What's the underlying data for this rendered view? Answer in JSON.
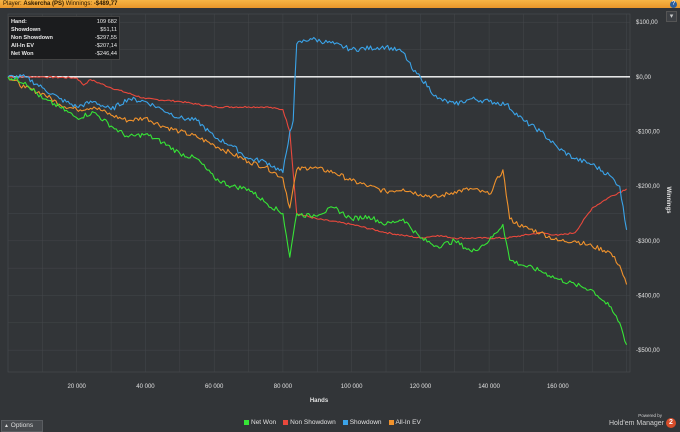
{
  "window": {
    "player_label": "Player:",
    "player_name": "Askercha (PS)",
    "winnings_label": "Winnings:",
    "winnings_value": "-$489,77",
    "help_icon": "?",
    "expand_icon": "▾"
  },
  "stats": [
    {
      "label": "Hand:",
      "value": "109 682"
    },
    {
      "label": "Showdown",
      "value": "$51,11"
    },
    {
      "label": "Non Showdown",
      "value": "-$297,55"
    },
    {
      "label": "All-In EV",
      "value": "-$207,14"
    },
    {
      "label": "Net Won",
      "value": "-$246,44"
    }
  ],
  "options_label": "Options",
  "options_icon": "▲",
  "branding": {
    "powered_by": "Powered by",
    "product": "Hold'em Manager",
    "version": "2"
  },
  "colors": {
    "net_won": "#36e436",
    "non_showdown": "#e8483c",
    "showdown": "#3aa3e8",
    "all_in_ev": "#f0922c",
    "zero_line": "#ffffff",
    "background": "#323538"
  },
  "chart_data": {
    "type": "line",
    "xlabel": "Hands",
    "ylabel": "Winnings",
    "xlim": [
      0,
      181000
    ],
    "ylim": [
      -540,
      115
    ],
    "x_ticks": [
      20000,
      40000,
      60000,
      80000,
      100000,
      120000,
      140000,
      160000
    ],
    "x_tick_labels": [
      "20 000",
      "40 000",
      "60 000",
      "80 000",
      "100 000",
      "120 000",
      "140 000",
      "160 000"
    ],
    "y_ticks": [
      100,
      0,
      -100,
      -200,
      -300,
      -400,
      -500
    ],
    "y_tick_labels": [
      "$100,00",
      "$0,00",
      "-$100,00",
      "-$200,00",
      "-$300,00",
      "-$400,00",
      "-$500,00"
    ],
    "grid": true,
    "legend_position": "bottom",
    "series": [
      {
        "name": "Net Won",
        "x": [
          0,
          5000,
          10000,
          15000,
          20000,
          25000,
          30000,
          35000,
          40000,
          45000,
          50000,
          55000,
          60000,
          65000,
          70000,
          75000,
          80000,
          82000,
          84000,
          88000,
          95000,
          100000,
          105000,
          110000,
          115000,
          120000,
          125000,
          130000,
          135000,
          140000,
          144000,
          146000,
          150000,
          155000,
          160000,
          165000,
          170000,
          175000,
          178000,
          180000
        ],
        "y": [
          0,
          -10,
          -40,
          -55,
          -75,
          -65,
          -90,
          -110,
          -105,
          -120,
          -140,
          -150,
          -185,
          -200,
          -205,
          -230,
          -250,
          -330,
          -250,
          -255,
          -240,
          -260,
          -255,
          -270,
          -260,
          -295,
          -310,
          -300,
          -320,
          -300,
          -270,
          -335,
          -345,
          -355,
          -370,
          -380,
          -390,
          -420,
          -450,
          -490
        ]
      },
      {
        "name": "Non Showdown",
        "x": [
          0,
          10000,
          20000,
          22000,
          24000,
          30000,
          40000,
          50000,
          55000,
          60000,
          70000,
          75000,
          80000,
          82000,
          84000,
          90000,
          100000,
          110000,
          115000,
          120000,
          125000,
          130000,
          140000,
          145000,
          150000,
          155000,
          160000,
          165000,
          170000,
          175000,
          180000
        ],
        "y": [
          0,
          0,
          -2,
          -15,
          -5,
          -20,
          -40,
          -45,
          -50,
          -55,
          -55,
          -55,
          -60,
          -100,
          -250,
          -260,
          -270,
          -285,
          -290,
          -295,
          -290,
          -295,
          -295,
          -295,
          -290,
          -285,
          -290,
          -285,
          -240,
          -220,
          -205
        ]
      },
      {
        "name": "Showdown",
        "x": [
          0,
          5000,
          10000,
          15000,
          20000,
          25000,
          30000,
          35000,
          40000,
          45000,
          50000,
          55000,
          60000,
          65000,
          70000,
          75000,
          80000,
          82000,
          83000,
          84000,
          88000,
          95000,
          100000,
          110000,
          115000,
          118000,
          120000,
          125000,
          130000,
          135000,
          140000,
          145000,
          150000,
          155000,
          160000,
          165000,
          170000,
          175000,
          178000,
          180000
        ],
        "y": [
          0,
          0,
          -20,
          -40,
          -55,
          -45,
          -60,
          -40,
          -45,
          -60,
          -75,
          -80,
          -110,
          -125,
          -150,
          -155,
          -175,
          -100,
          -80,
          60,
          70,
          60,
          50,
          55,
          45,
          10,
          0,
          -40,
          -50,
          -40,
          -45,
          -50,
          -80,
          -100,
          -130,
          -150,
          -160,
          -180,
          -200,
          -280
        ]
      },
      {
        "name": "All-In EV",
        "x": [
          0,
          5000,
          10000,
          15000,
          20000,
          25000,
          30000,
          35000,
          40000,
          45000,
          50000,
          55000,
          60000,
          65000,
          70000,
          75000,
          80000,
          82000,
          84000,
          88000,
          95000,
          100000,
          105000,
          110000,
          115000,
          120000,
          125000,
          130000,
          135000,
          140000,
          144000,
          146000,
          150000,
          155000,
          160000,
          165000,
          170000,
          175000,
          178000,
          180000
        ],
        "y": [
          0,
          -20,
          -30,
          -50,
          -60,
          -55,
          -70,
          -80,
          -75,
          -90,
          -100,
          -110,
          -125,
          -140,
          -155,
          -165,
          -185,
          -240,
          -170,
          -165,
          -175,
          -190,
          -200,
          -210,
          -205,
          -215,
          -220,
          -210,
          -205,
          -215,
          -170,
          -260,
          -275,
          -285,
          -300,
          -300,
          -310,
          -320,
          -345,
          -380
        ]
      }
    ]
  }
}
